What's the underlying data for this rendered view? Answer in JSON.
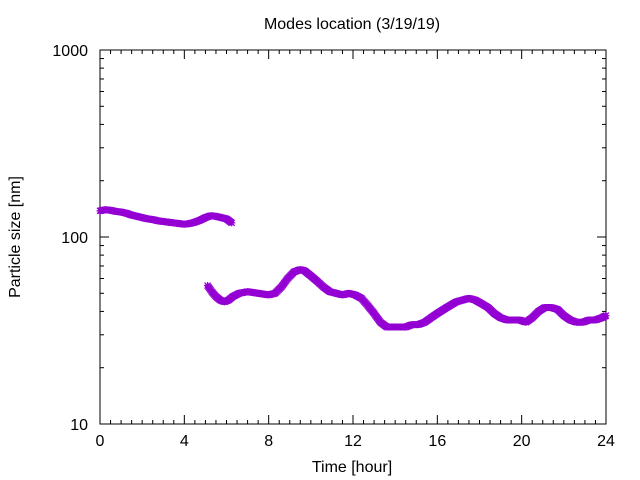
{
  "chart_data": {
    "type": "scatter",
    "title": "Modes location (3/19/19)",
    "xlabel": "Time [hour]",
    "ylabel": "Particle size [nm]",
    "xlim": [
      0,
      24
    ],
    "ylim": [
      10,
      1000
    ],
    "yscale": "log",
    "grid": false,
    "legend": "none",
    "x_ticks": [
      0,
      4,
      8,
      12,
      16,
      20,
      24
    ],
    "x_tick_labels": [
      "0",
      "4",
      "8",
      "12",
      "16",
      "20",
      "24"
    ],
    "y_ticks": [
      10,
      100,
      1000
    ],
    "y_tick_labels": [
      "10",
      "100",
      "1000"
    ],
    "marker_color": "#9400d3",
    "series": [
      {
        "x": [
          0.0,
          0.25,
          0.5,
          0.75,
          1.0,
          1.25,
          1.5,
          1.75,
          2.0,
          2.25,
          2.5,
          2.75,
          3.0,
          3.25,
          3.5,
          3.75,
          4.0,
          4.25,
          4.5,
          4.75,
          5.0,
          5.25,
          5.5,
          5.75,
          6.0,
          6.25
        ],
        "y": [
          138,
          140,
          139,
          137,
          136,
          134,
          131,
          129,
          127,
          125,
          124,
          122,
          121,
          120,
          119,
          118,
          117,
          118,
          120,
          123,
          127,
          130,
          129,
          127,
          125,
          119
        ]
      },
      {
        "x": [
          5.1,
          5.3,
          5.5,
          5.7,
          5.9,
          6.1,
          6.3,
          6.6,
          7.0,
          7.5,
          8.0,
          8.3,
          8.6,
          8.9,
          9.2,
          9.5,
          9.7,
          10.0,
          10.3,
          10.6,
          10.9,
          11.2,
          11.5,
          11.8,
          12.1,
          12.4,
          12.7,
          13.0,
          13.3,
          13.6,
          13.9,
          14.2,
          14.5,
          14.8,
          15.1,
          15.4,
          15.7,
          16.0,
          16.3,
          16.6,
          16.9,
          17.2,
          17.5,
          17.8,
          18.1,
          18.4,
          18.7,
          19.0,
          19.3,
          19.6,
          19.9,
          20.2,
          20.5,
          20.8,
          21.1,
          21.4,
          21.7,
          22.0,
          22.3,
          22.6,
          22.9,
          23.2,
          23.5,
          23.8,
          24.0
        ],
        "y": [
          55,
          51,
          48,
          46,
          45,
          46,
          48,
          50,
          51,
          50,
          49,
          50,
          54,
          60,
          65,
          67,
          66,
          62,
          58,
          54,
          51,
          50,
          49,
          50,
          49,
          47,
          43,
          39,
          35,
          33,
          33,
          33,
          33,
          34,
          34,
          35,
          37,
          39,
          41,
          43,
          45,
          46,
          47,
          46,
          44,
          42,
          39,
          37,
          36,
          36,
          36,
          35,
          37,
          40,
          42,
          42,
          41,
          38,
          36,
          35,
          35,
          36,
          36,
          37,
          38
        ]
      }
    ]
  }
}
